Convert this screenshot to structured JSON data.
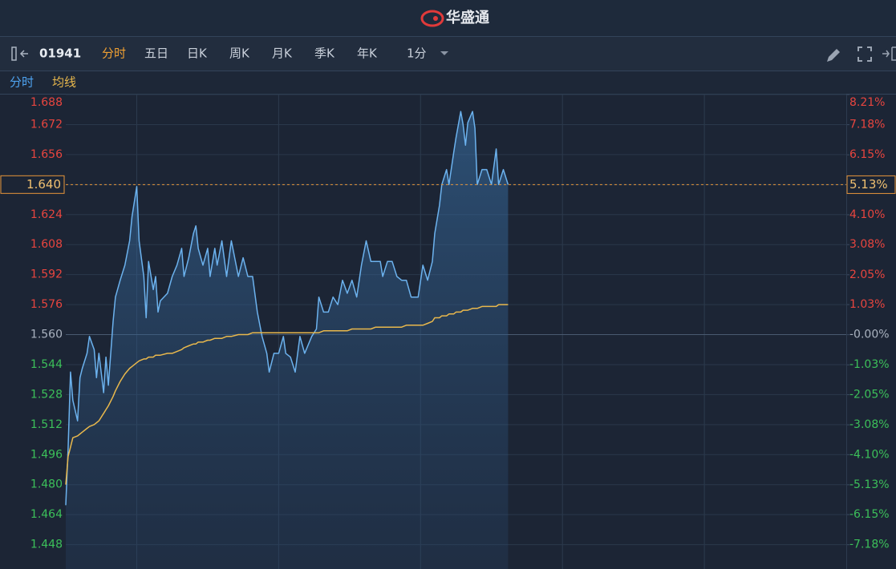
{
  "header": {
    "title": "华盛通"
  },
  "toolbar": {
    "code": "01941",
    "tabs": [
      "分时",
      "五日",
      "日K",
      "周K",
      "月K",
      "季K",
      "年K"
    ],
    "active_tab": 0,
    "interval": "1分"
  },
  "chart_data": {
    "type": "line",
    "x": [
      0,
      1,
      2,
      3,
      5,
      6,
      7,
      9,
      10,
      12,
      13,
      14,
      16,
      17,
      18,
      20,
      21,
      23,
      25,
      27,
      28,
      30,
      31,
      33,
      34,
      35,
      37,
      38,
      39,
      40,
      43,
      45,
      47,
      49,
      50,
      52,
      54,
      55,
      56,
      58,
      60,
      61,
      63,
      64,
      66,
      68,
      70,
      73,
      75,
      77,
      79,
      81,
      83,
      85,
      86,
      88,
      90,
      92,
      93,
      95,
      97,
      99,
      101,
      104,
      106,
      107,
      109,
      111,
      113,
      115,
      117,
      119,
      121,
      123,
      125,
      127,
      129,
      131,
      133,
      134,
      136,
      138,
      140,
      142,
      144,
      146,
      149,
      151,
      153,
      155,
      156,
      158,
      159,
      161,
      162,
      164,
      165,
      167,
      168,
      169,
      170,
      172,
      173,
      174,
      176,
      178,
      180,
      182,
      183,
      185,
      187
    ],
    "series": [
      {
        "name": "分时",
        "color": "#6cb2ee",
        "area": true,
        "values": [
          1.469,
          1.499,
          1.54,
          1.525,
          1.514,
          1.537,
          1.542,
          1.55,
          1.559,
          1.552,
          1.537,
          1.55,
          1.529,
          1.548,
          1.533,
          1.567,
          1.58,
          1.589,
          1.597,
          1.61,
          1.623,
          1.639,
          1.61,
          1.591,
          1.569,
          1.599,
          1.584,
          1.591,
          1.572,
          1.578,
          1.582,
          1.591,
          1.597,
          1.606,
          1.591,
          1.601,
          1.614,
          1.618,
          1.606,
          1.597,
          1.606,
          1.591,
          1.606,
          1.597,
          1.61,
          1.591,
          1.61,
          1.591,
          1.601,
          1.591,
          1.591,
          1.572,
          1.559,
          1.55,
          1.54,
          1.55,
          1.55,
          1.559,
          1.55,
          1.548,
          1.54,
          1.559,
          1.55,
          1.559,
          1.563,
          1.58,
          1.572,
          1.572,
          1.58,
          1.576,
          1.589,
          1.582,
          1.589,
          1.58,
          1.597,
          1.61,
          1.599,
          1.599,
          1.599,
          1.591,
          1.599,
          1.599,
          1.591,
          1.589,
          1.589,
          1.58,
          1.58,
          1.597,
          1.589,
          1.599,
          1.614,
          1.629,
          1.64,
          1.648,
          1.64,
          1.657,
          1.665,
          1.679,
          1.672,
          1.661,
          1.673,
          1.679,
          1.67,
          1.64,
          1.648,
          1.648,
          1.64,
          1.659,
          1.64,
          1.648,
          1.64
        ]
      },
      {
        "name": "均线",
        "color": "#e9b84c",
        "area": false,
        "values": [
          1.48,
          1.495,
          1.5,
          1.505,
          1.506,
          1.507,
          1.508,
          1.51,
          1.511,
          1.512,
          1.513,
          1.514,
          1.518,
          1.52,
          1.522,
          1.527,
          1.53,
          1.535,
          1.539,
          1.542,
          1.543,
          1.545,
          1.546,
          1.547,
          1.547,
          1.548,
          1.548,
          1.549,
          1.549,
          1.549,
          1.55,
          1.55,
          1.551,
          1.552,
          1.553,
          1.554,
          1.555,
          1.555,
          1.556,
          1.556,
          1.557,
          1.557,
          1.558,
          1.558,
          1.558,
          1.559,
          1.559,
          1.56,
          1.56,
          1.56,
          1.561,
          1.561,
          1.561,
          1.561,
          1.561,
          1.561,
          1.561,
          1.561,
          1.561,
          1.561,
          1.561,
          1.561,
          1.561,
          1.561,
          1.561,
          1.561,
          1.562,
          1.562,
          1.562,
          1.562,
          1.562,
          1.562,
          1.563,
          1.563,
          1.563,
          1.563,
          1.563,
          1.564,
          1.564,
          1.564,
          1.564,
          1.564,
          1.564,
          1.564,
          1.565,
          1.565,
          1.565,
          1.565,
          1.566,
          1.567,
          1.569,
          1.569,
          1.57,
          1.57,
          1.571,
          1.571,
          1.572,
          1.572,
          1.573,
          1.573,
          1.573,
          1.574,
          1.574,
          1.574,
          1.575,
          1.575,
          1.575,
          1.575,
          1.576,
          1.576,
          1.576
        ]
      }
    ],
    "xlim": [
      0,
      330
    ],
    "xticks": [
      30,
      90,
      150,
      210,
      270
    ],
    "ylim": [
      1.435,
      1.688
    ],
    "yticks": [
      {
        "value": 1.688,
        "label": "1.688"
      },
      {
        "value": 1.672,
        "label": "1.672"
      },
      {
        "value": 1.656,
        "label": "1.656"
      },
      {
        "value": 1.64,
        "label": "1.640"
      },
      {
        "value": 1.624,
        "label": "1.624"
      },
      {
        "value": 1.608,
        "label": "1.608"
      },
      {
        "value": 1.592,
        "label": "1.592"
      },
      {
        "value": 1.576,
        "label": "1.576"
      },
      {
        "value": 1.56,
        "label": "1.560"
      },
      {
        "value": 1.544,
        "label": "1.544"
      },
      {
        "value": 1.528,
        "label": "1.528"
      },
      {
        "value": 1.512,
        "label": "1.512"
      },
      {
        "value": 1.496,
        "label": "1.496"
      },
      {
        "value": 1.48,
        "label": "1.480"
      },
      {
        "value": 1.464,
        "label": "1.464"
      },
      {
        "value": 1.448,
        "label": "1.448"
      }
    ],
    "y2lim": [
      -8.01,
      8.21
    ],
    "y2ticks": [
      {
        "value": 8.21,
        "label": "8.21%"
      },
      {
        "value": 7.18,
        "label": "7.18%"
      },
      {
        "value": 6.15,
        "label": "6.15%"
      },
      {
        "value": 5.13,
        "label": "5.13%"
      },
      {
        "value": 4.1,
        "label": "4.10%"
      },
      {
        "value": 3.08,
        "label": "3.08%"
      },
      {
        "value": 2.05,
        "label": "2.05%"
      },
      {
        "value": 1.03,
        "label": "1.03%"
      },
      {
        "value": 0,
        "label": "-0.00%"
      },
      {
        "value": -1.03,
        "label": "-1.03%"
      },
      {
        "value": -2.05,
        "label": "-2.05%"
      },
      {
        "value": -3.08,
        "label": "-3.08%"
      },
      {
        "value": -4.1,
        "label": "-4.10%"
      },
      {
        "value": -5.13,
        "label": "-5.13%"
      },
      {
        "value": -6.15,
        "label": "-6.15%"
      },
      {
        "value": -7.18,
        "label": "-7.18%"
      }
    ],
    "prev_close": 1.56,
    "last_price": 1.64,
    "up_color": "#e8453f",
    "down_color": "#3cc05a",
    "grid": true
  }
}
